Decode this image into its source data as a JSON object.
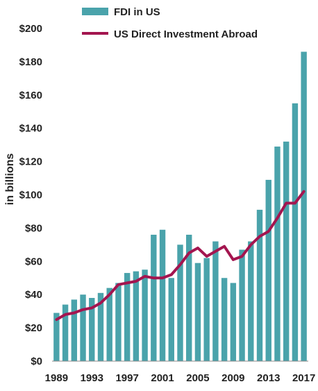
{
  "chart_data": {
    "type": "bar",
    "title": "",
    "xlabel": "",
    "ylabel": "in billions",
    "ylim": [
      0,
      200
    ],
    "y_ticks": [
      "$0",
      "$20",
      "$40",
      "$60",
      "$80",
      "$100",
      "$120",
      "$140",
      "$160",
      "$180",
      "$200"
    ],
    "y_tick_values": [
      0,
      20,
      40,
      60,
      80,
      100,
      120,
      140,
      160,
      180,
      200
    ],
    "x_tick_labels": [
      "1989",
      "1993",
      "1997",
      "2001",
      "2005",
      "2009",
      "2013",
      "2017"
    ],
    "categories": [
      "1989",
      "1990",
      "1991",
      "1992",
      "1993",
      "1994",
      "1995",
      "1996",
      "1997",
      "1998",
      "1999",
      "2000",
      "2001",
      "2002",
      "2003",
      "2004",
      "2005",
      "2006",
      "2007",
      "2008",
      "2009",
      "2010",
      "2011",
      "2012",
      "2013",
      "2014",
      "2015",
      "2016",
      "2017"
    ],
    "grid": false,
    "legend_position": "top-left",
    "series": [
      {
        "name": "FDI in US",
        "type": "bar",
        "color": "#4aa3ab",
        "values": [
          29,
          34,
          37,
          40,
          38,
          41,
          44,
          47,
          53,
          54,
          55,
          76,
          79,
          50,
          70,
          76,
          59,
          62,
          72,
          50,
          47,
          67,
          72,
          91,
          109,
          129,
          132,
          155,
          186
        ]
      },
      {
        "name": "US Direct Investment Abroad",
        "type": "line",
        "color": "#a3154f",
        "values": [
          25,
          28,
          29,
          31,
          32,
          35,
          40,
          46,
          47,
          48,
          51,
          50,
          50,
          52,
          58,
          65,
          68,
          63,
          66,
          69,
          61,
          63,
          70,
          75,
          78,
          86,
          95,
          95,
          102
        ]
      }
    ]
  }
}
